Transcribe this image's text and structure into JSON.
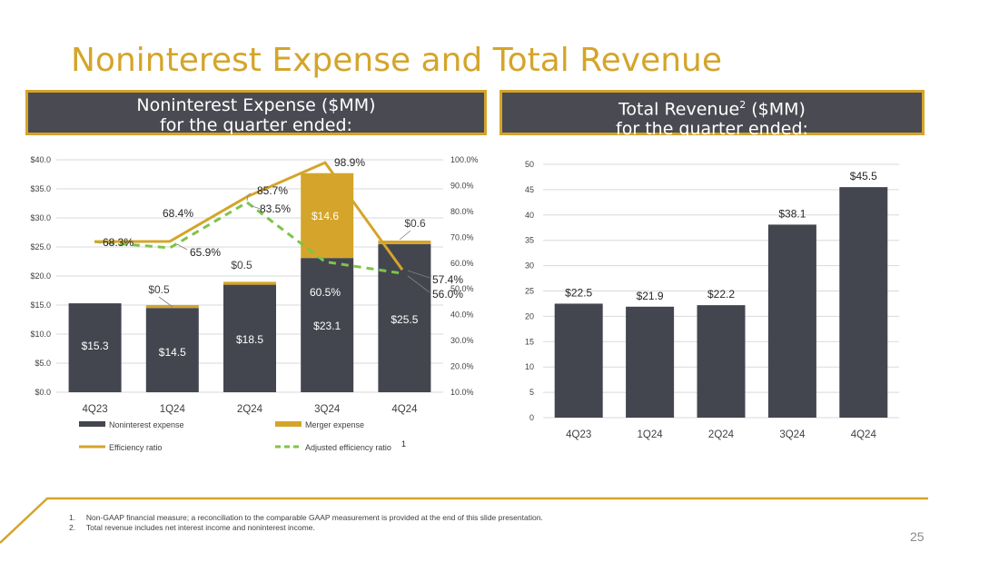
{
  "title": "Noninterest Expense and Total Revenue",
  "headers": {
    "left": {
      "line1": "Noninterest Expense ($MM)",
      "line2": "for the quarter ended:"
    },
    "right": {
      "line1_prefix": "Total Revenue",
      "superscript": "2",
      "line1_suffix": " ($MM)",
      "line2": "for the quarter ended:"
    }
  },
  "colors": {
    "gold": "#D4A52A",
    "dark": "#44464F",
    "dashed": "#7DC44A",
    "grid": "#D9D9D9",
    "axis_text": "#404040"
  },
  "chart_data": [
    {
      "type": "bar",
      "stacked": true,
      "title": "Noninterest Expense ($MM) for the quarter ended:",
      "categories": [
        "4Q23",
        "1Q24",
        "2Q24",
        "3Q24",
        "4Q24"
      ],
      "ylim": [
        0,
        40
      ],
      "y_ticks": [
        "$0.0",
        "$5.0",
        "$10.0",
        "$15.0",
        "$20.0",
        "$25.0",
        "$30.0",
        "$35.0",
        "$40.0"
      ],
      "y2lim": [
        10,
        100
      ],
      "y2_ticks": [
        "10.0%",
        "20.0%",
        "30.0%",
        "40.0%",
        "50.0%",
        "60.0%",
        "70.0%",
        "80.0%",
        "90.0%",
        "100.0%"
      ],
      "series": [
        {
          "name": "Noninterest expense",
          "values": [
            15.3,
            14.5,
            18.5,
            23.1,
            25.5
          ],
          "labels": [
            "$15.3",
            "$14.5",
            "$18.5",
            "$23.1",
            "$25.5"
          ]
        },
        {
          "name": "Merger expense",
          "values": [
            0,
            0.5,
            0.5,
            14.6,
            0.6
          ],
          "labels": [
            "",
            "$0.5",
            "$0.5",
            "$14.6",
            "$0.6"
          ]
        }
      ],
      "line_series": [
        {
          "name": "Efficiency ratio",
          "axis": "secondary",
          "values": [
            68.3,
            68.4,
            85.7,
            98.9,
            57.4
          ],
          "labels": [
            "68.3%",
            "68.4%",
            "85.7%",
            "98.9%",
            "57.4%"
          ]
        },
        {
          "name": "Adjusted efficiency ratio",
          "superscript": "1",
          "axis": "secondary",
          "style": "dashed",
          "values": [
            68.3,
            65.9,
            83.5,
            60.5,
            56.0
          ],
          "labels": [
            "68.3%",
            "65.9%",
            "83.5%",
            "60.5%",
            "56.0%"
          ]
        }
      ],
      "legend": [
        "Noninterest expense",
        "Merger expense",
        "Efficiency ratio",
        "Adjusted efficiency ratio"
      ]
    },
    {
      "type": "bar",
      "title": "Total Revenue ($MM) for the quarter ended:",
      "categories": [
        "4Q23",
        "1Q24",
        "2Q24",
        "3Q24",
        "4Q24"
      ],
      "values": [
        22.5,
        21.9,
        22.2,
        38.1,
        45.5
      ],
      "labels": [
        "$22.5",
        "$21.9",
        "$22.2",
        "$38.1",
        "$45.5"
      ],
      "ylim": [
        0,
        50
      ],
      "y_ticks": [
        "0",
        "5",
        "10",
        "15",
        "20",
        "25",
        "30",
        "35",
        "40",
        "45",
        "50"
      ]
    }
  ],
  "footnotes": [
    {
      "num": "1.",
      "text": "Non-GAAP financial measure; a reconciliation to the comparable GAAP measurement is provided at the end of this slide presentation."
    },
    {
      "num": "2.",
      "text": "Total revenue includes net interest income and noninterest income."
    }
  ],
  "page_number": "25"
}
